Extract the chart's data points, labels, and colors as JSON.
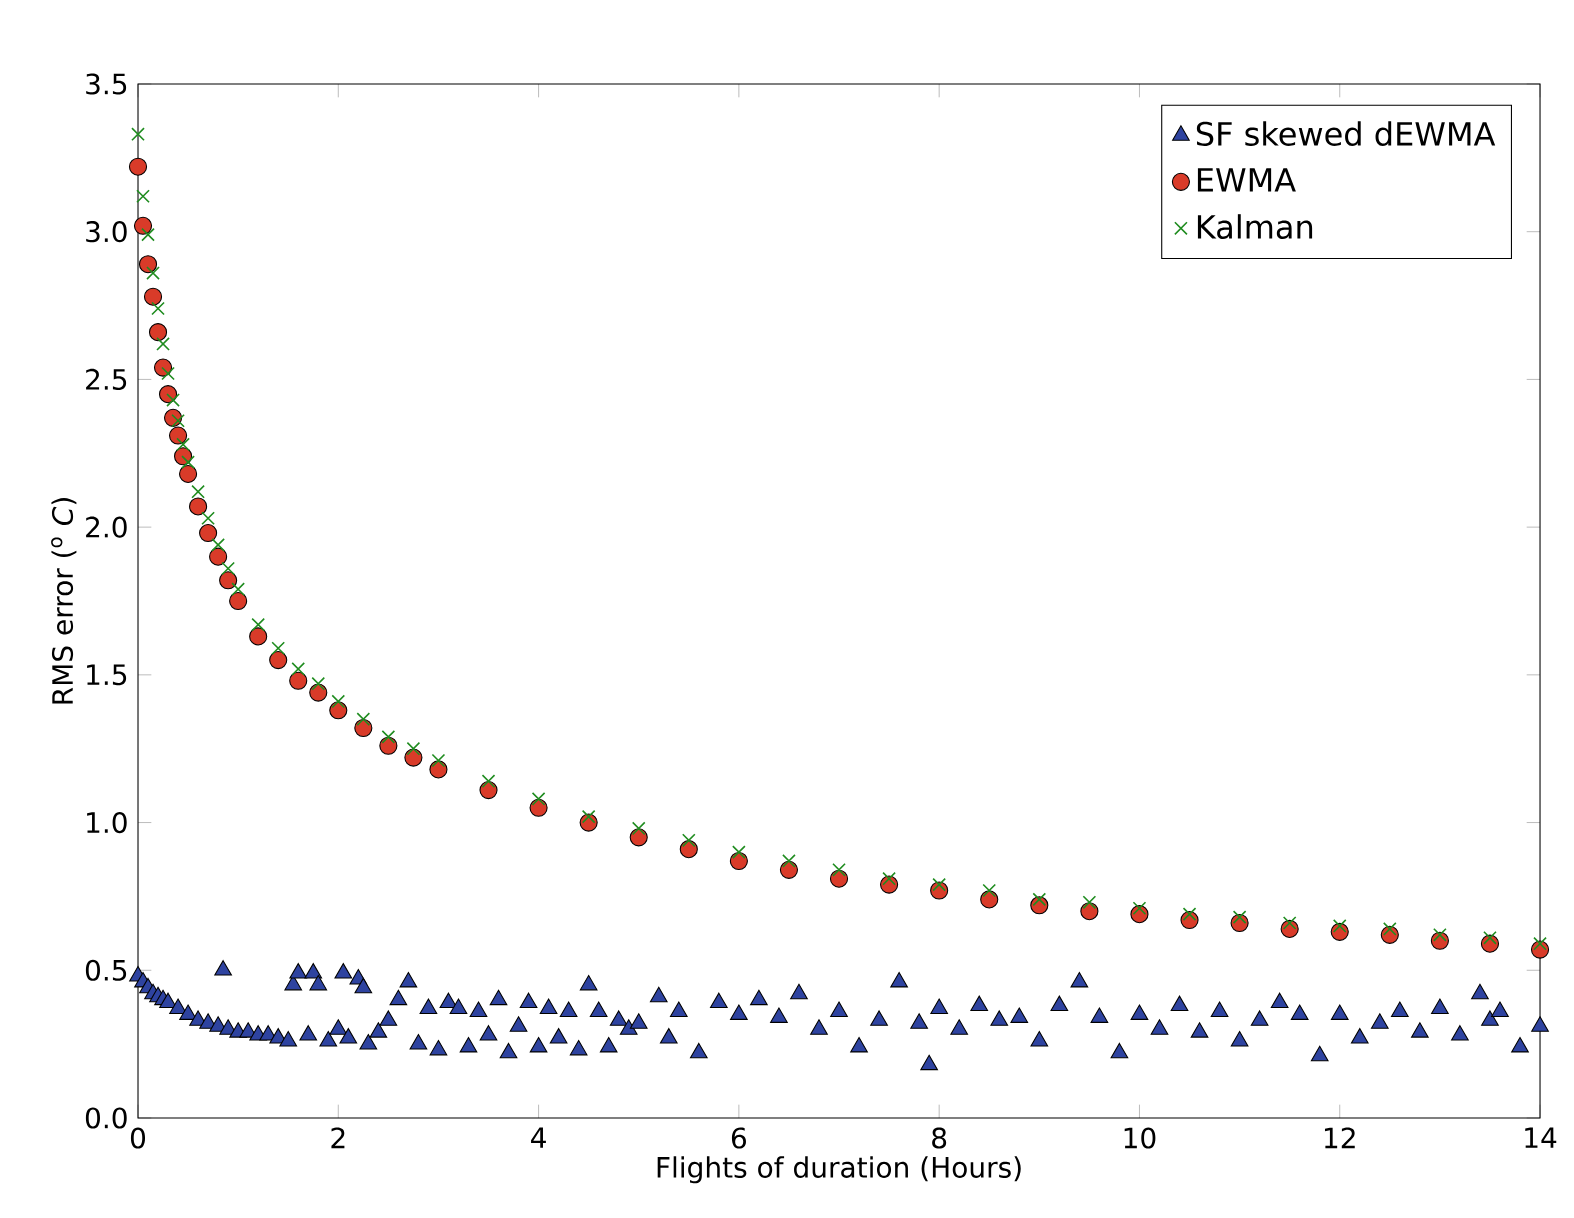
{
  "chart_data": {
    "type": "scatter",
    "xlabel": "Flights of duration (Hours)",
    "ylabel": "RMS error ($^{o}$ *C*)",
    "xlim": [
      0,
      14
    ],
    "ylim": [
      0,
      3.5
    ],
    "xticks": [
      0,
      2,
      4,
      6,
      8,
      10,
      12,
      14
    ],
    "yticks": [
      {
        "value": 0,
        "label": "0.0"
      },
      {
        "value": 0.5,
        "label": "0.5"
      },
      {
        "value": 1,
        "label": "1.0"
      },
      {
        "value": 1.5,
        "label": "1.5"
      },
      {
        "value": 2,
        "label": "2.0"
      },
      {
        "value": 2.5,
        "label": "2.5"
      },
      {
        "value": 3,
        "label": "3.0"
      },
      {
        "value": 3.5,
        "label": "3.5"
      }
    ],
    "legend": "top right",
    "grid": false,
    "series": [
      {
        "name": "SF skewed dEWMA",
        "color": "#2e43a0",
        "marker": "triangle",
        "x": [
          0,
          0.05,
          0.1,
          0.15,
          0.2,
          0.25,
          0.3,
          0.4,
          0.5,
          0.6,
          0.7,
          0.8,
          0.85,
          0.9,
          1.0,
          1.1,
          1.2,
          1.3,
          1.4,
          1.5,
          1.55,
          1.6,
          1.7,
          1.75,
          1.8,
          1.9,
          2.0,
          2.05,
          2.1,
          2.2,
          2.25,
          2.3,
          2.4,
          2.5,
          2.6,
          2.7,
          2.8,
          2.9,
          3.0,
          3.1,
          3.2,
          3.3,
          3.4,
          3.5,
          3.6,
          3.7,
          3.8,
          3.9,
          4.0,
          4.1,
          4.2,
          4.3,
          4.4,
          4.5,
          4.6,
          4.7,
          4.8,
          4.9,
          5.0,
          5.2,
          5.3,
          5.4,
          5.6,
          5.8,
          6.0,
          6.2,
          6.4,
          6.6,
          6.8,
          7.0,
          7.2,
          7.4,
          7.6,
          7.8,
          7.9,
          8.0,
          8.2,
          8.4,
          8.6,
          8.8,
          9.0,
          9.2,
          9.4,
          9.6,
          9.8,
          10.0,
          10.2,
          10.4,
          10.6,
          10.8,
          11.0,
          11.2,
          11.4,
          11.6,
          11.8,
          12.0,
          12.2,
          12.4,
          12.6,
          12.8,
          13.0,
          13.2,
          13.4,
          13.5,
          13.6,
          13.8,
          14.0
        ],
        "values": [
          0.48,
          0.46,
          0.44,
          0.42,
          0.41,
          0.4,
          0.39,
          0.37,
          0.35,
          0.33,
          0.32,
          0.31,
          0.5,
          0.3,
          0.29,
          0.29,
          0.28,
          0.28,
          0.27,
          0.26,
          0.45,
          0.49,
          0.28,
          0.49,
          0.45,
          0.26,
          0.3,
          0.49,
          0.27,
          0.47,
          0.44,
          0.25,
          0.29,
          0.33,
          0.4,
          0.46,
          0.25,
          0.37,
          0.23,
          0.39,
          0.37,
          0.24,
          0.36,
          0.28,
          0.4,
          0.22,
          0.31,
          0.39,
          0.24,
          0.37,
          0.27,
          0.36,
          0.23,
          0.45,
          0.36,
          0.24,
          0.33,
          0.3,
          0.32,
          0.41,
          0.27,
          0.36,
          0.22,
          0.39,
          0.35,
          0.4,
          0.34,
          0.42,
          0.3,
          0.36,
          0.24,
          0.33,
          0.46,
          0.32,
          0.18,
          0.37,
          0.3,
          0.38,
          0.33,
          0.34,
          0.26,
          0.38,
          0.46,
          0.34,
          0.22,
          0.35,
          0.3,
          0.38,
          0.29,
          0.36,
          0.26,
          0.33,
          0.39,
          0.35,
          0.21,
          0.35,
          0.27,
          0.32,
          0.36,
          0.29,
          0.37,
          0.28,
          0.42,
          0.33,
          0.36,
          0.24,
          0.31
        ]
      },
      {
        "name": "EWMA",
        "color": "#d93b29",
        "marker": "circle",
        "x": [
          0,
          0.05,
          0.1,
          0.15,
          0.2,
          0.25,
          0.3,
          0.35,
          0.4,
          0.45,
          0.5,
          0.6,
          0.7,
          0.8,
          0.9,
          1.0,
          1.2,
          1.4,
          1.6,
          1.8,
          2.0,
          2.25,
          2.5,
          2.75,
          3.0,
          3.5,
          4.0,
          4.5,
          5.0,
          5.5,
          6.0,
          6.5,
          7.0,
          7.5,
          8.0,
          8.5,
          9.0,
          9.5,
          10.0,
          10.5,
          11.0,
          11.5,
          12.0,
          12.5,
          13.0,
          13.5,
          14.0
        ],
        "values": [
          3.22,
          3.02,
          2.89,
          2.78,
          2.66,
          2.54,
          2.45,
          2.37,
          2.31,
          2.24,
          2.18,
          2.07,
          1.98,
          1.9,
          1.82,
          1.75,
          1.63,
          1.55,
          1.48,
          1.44,
          1.38,
          1.32,
          1.26,
          1.22,
          1.18,
          1.11,
          1.05,
          1.0,
          0.95,
          0.91,
          0.87,
          0.84,
          0.81,
          0.79,
          0.77,
          0.74,
          0.72,
          0.7,
          0.69,
          0.67,
          0.66,
          0.64,
          0.63,
          0.62,
          0.6,
          0.59,
          0.57
        ]
      },
      {
        "name": "Kalman",
        "color": "#1f8c1f",
        "marker": "cross",
        "x": [
          0,
          0.05,
          0.1,
          0.15,
          0.2,
          0.25,
          0.3,
          0.35,
          0.4,
          0.45,
          0.5,
          0.6,
          0.7,
          0.8,
          0.9,
          1.0,
          1.2,
          1.4,
          1.6,
          1.8,
          2.0,
          2.25,
          2.5,
          2.75,
          3.0,
          3.5,
          4.0,
          4.5,
          5.0,
          5.5,
          6.0,
          6.5,
          7.0,
          7.5,
          8.0,
          8.5,
          9.0,
          9.5,
          10.0,
          10.5,
          11.0,
          11.5,
          12.0,
          12.5,
          13.0,
          13.5,
          14.0
        ],
        "values": [
          3.33,
          3.12,
          2.99,
          2.86,
          2.74,
          2.62,
          2.52,
          2.43,
          2.36,
          2.28,
          2.22,
          2.12,
          2.03,
          1.94,
          1.86,
          1.79,
          1.67,
          1.59,
          1.52,
          1.47,
          1.41,
          1.35,
          1.29,
          1.25,
          1.21,
          1.14,
          1.08,
          1.02,
          0.98,
          0.94,
          0.9,
          0.87,
          0.84,
          0.81,
          0.79,
          0.77,
          0.74,
          0.73,
          0.71,
          0.69,
          0.68,
          0.66,
          0.65,
          0.64,
          0.62,
          0.61,
          0.59
        ]
      }
    ]
  }
}
